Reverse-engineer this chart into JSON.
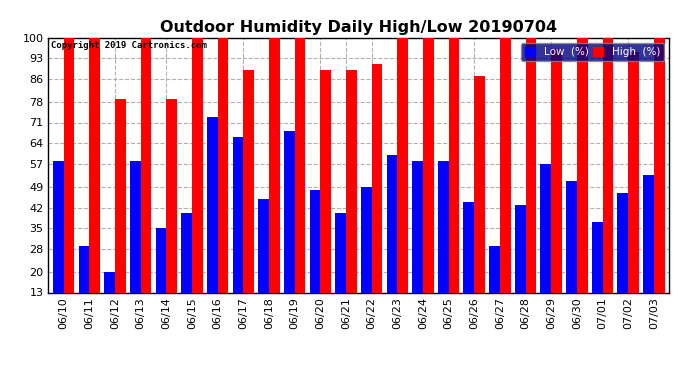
{
  "title": "Outdoor Humidity Daily High/Low 20190704",
  "copyright": "Copyright 2019 Cartronics.com",
  "categories": [
    "06/10",
    "06/11",
    "06/12",
    "06/13",
    "06/14",
    "06/15",
    "06/16",
    "06/17",
    "06/18",
    "06/19",
    "06/20",
    "06/21",
    "06/22",
    "06/23",
    "06/24",
    "06/25",
    "06/26",
    "06/27",
    "06/28",
    "06/29",
    "06/30",
    "07/01",
    "07/02",
    "07/03"
  ],
  "high": [
    100,
    100,
    79,
    100,
    79,
    100,
    100,
    89,
    100,
    100,
    89,
    89,
    91,
    100,
    100,
    100,
    87,
    100,
    100,
    96,
    100,
    100,
    95,
    100
  ],
  "low": [
    58,
    29,
    20,
    58,
    35,
    40,
    73,
    66,
    45,
    68,
    48,
    40,
    49,
    60,
    58,
    58,
    44,
    29,
    43,
    57,
    51,
    37,
    47,
    53
  ],
  "high_color": "#ff0000",
  "low_color": "#0000ff",
  "bg_color": "#ffffff",
  "grid_color": "#b0b0b0",
  "ylim_min": 13,
  "ylim_max": 100,
  "yticks": [
    13,
    20,
    28,
    35,
    42,
    49,
    57,
    64,
    71,
    78,
    86,
    93,
    100
  ],
  "bar_width": 0.42,
  "title_fontsize": 11.5,
  "tick_fontsize": 8,
  "legend_low_label": "Low  (%)",
  "legend_high_label": "High  (%)",
  "figwidth": 6.9,
  "figheight": 3.75,
  "dpi": 100
}
